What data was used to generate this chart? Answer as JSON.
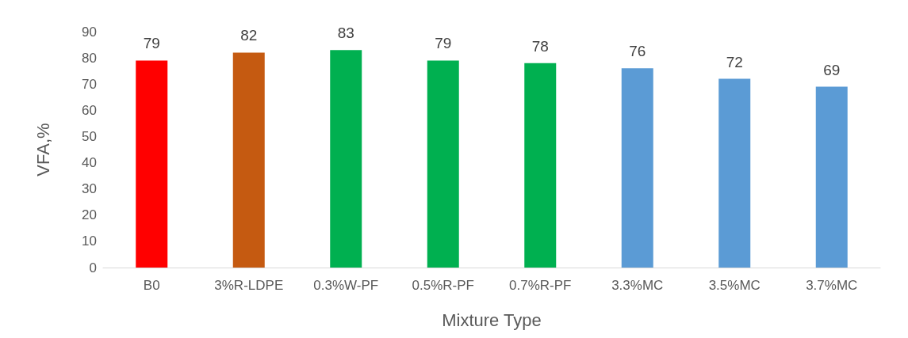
{
  "chart_data": {
    "type": "bar",
    "xlabel": "Mixture Type",
    "ylabel": "VFA,%",
    "categories": [
      "B0",
      "3%R-LDPE",
      "0.3%W-PF",
      "0.5%R-PF",
      "0.7%R-PF",
      "3.3%MC",
      "3.5%MC",
      "3.7%MC"
    ],
    "values": [
      79,
      82,
      83,
      79,
      78,
      76,
      72,
      69
    ],
    "colors": [
      "#ff0000",
      "#c55a11",
      "#00b050",
      "#00b050",
      "#00b050",
      "#5b9bd5",
      "#5b9bd5",
      "#5b9bd5"
    ],
    "ylim": [
      0,
      90
    ],
    "yticks": [
      0,
      10,
      20,
      30,
      40,
      50,
      60,
      70,
      80,
      90
    ],
    "grid": false,
    "data_labels": true
  }
}
